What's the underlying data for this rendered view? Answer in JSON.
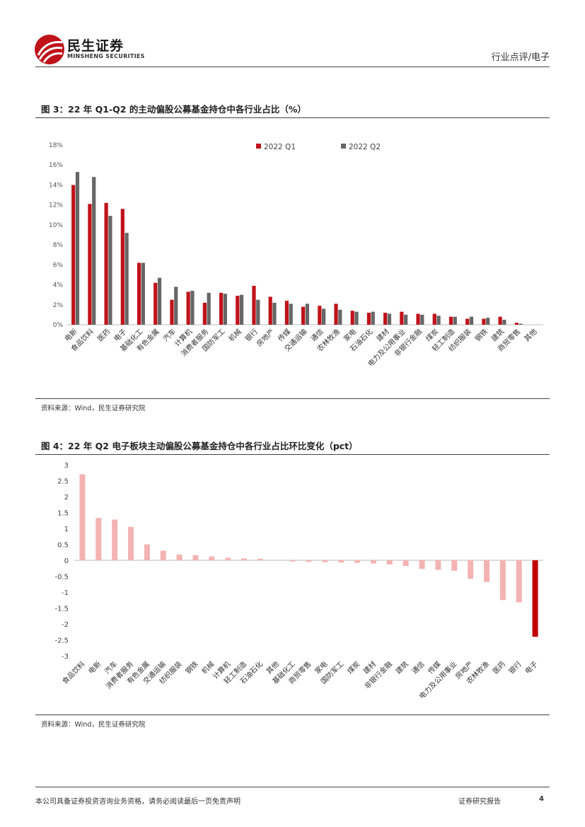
{
  "header": {
    "logo_cn": "民生证券",
    "logo_en": "MINSHENG SECURITIES",
    "section": "行业点评/电子"
  },
  "colors": {
    "brand_red": "#c0121a",
    "q2_gray": "#666666",
    "pos_pink": "#f4b3b3",
    "neg_red": "#c00000"
  },
  "figure3": {
    "title": "图 3：22 年 Q1-Q2 的主动偏股公募基金持仓中各行业占比（%）",
    "source": "资料来源：Wind，民生证券研究院",
    "chart_data": {
      "type": "bar",
      "categories": [
        "电新",
        "食品饮料",
        "医药",
        "电子",
        "基础化工",
        "有色金属",
        "汽车",
        "计算机",
        "消费者服务",
        "国防军工",
        "机械",
        "银行",
        "房地产",
        "传媒",
        "交通运输",
        "通信",
        "农林牧渔",
        "家电",
        "石油石化",
        "建材",
        "电力及公用事业",
        "非银行金融",
        "煤炭",
        "轻工制造",
        "纺织服装",
        "钢铁",
        "建筑",
        "商贸零售",
        "其他"
      ],
      "series": [
        {
          "name": "2022 Q1",
          "values": [
            14.0,
            12.1,
            12.2,
            11.6,
            6.2,
            4.2,
            2.5,
            3.3,
            2.2,
            3.2,
            2.9,
            3.9,
            2.8,
            2.4,
            1.8,
            1.9,
            2.1,
            1.4,
            1.2,
            1.2,
            1.3,
            1.1,
            1.1,
            0.8,
            0.6,
            0.6,
            0.8,
            0.2,
            0.0
          ]
        },
        {
          "name": "2022 Q2",
          "values": [
            15.3,
            14.8,
            10.9,
            9.2,
            6.2,
            4.7,
            3.8,
            3.4,
            3.2,
            3.1,
            3.0,
            2.5,
            2.2,
            2.1,
            2.1,
            1.6,
            1.5,
            1.3,
            1.3,
            1.1,
            1.0,
            1.0,
            0.9,
            0.8,
            0.8,
            0.7,
            0.5,
            0.1,
            0.0
          ]
        }
      ],
      "ylim": [
        0,
        18
      ],
      "yticks": [
        "0%",
        "2%",
        "4%",
        "6%",
        "8%",
        "10%",
        "12%",
        "14%",
        "16%",
        "18%"
      ],
      "xlabel": "",
      "ylabel": "",
      "legend": "top-center"
    }
  },
  "figure4": {
    "title": "图 4：22 年 Q2 电子板块主动偏股公募基金持仓中各行业占比环比变化（pct）",
    "source": "资料来源：Wind，民生证券研究院",
    "chart_data": {
      "type": "bar",
      "categories": [
        "食品饮料",
        "电新",
        "汽车",
        "消费者服务",
        "有色金属",
        "交通运输",
        "纺织服装",
        "钢铁",
        "机械",
        "计算机",
        "轻工制造",
        "石油石化",
        "其他",
        "基础化工",
        "商贸零售",
        "家电",
        "国防军工",
        "煤炭",
        "建材",
        "非银行金融",
        "建筑",
        "通信",
        "传媒",
        "电力及公用事业",
        "房地产",
        "农林牧渔",
        "医药",
        "银行",
        "电子"
      ],
      "values": [
        2.7,
        1.33,
        1.28,
        1.05,
        0.5,
        0.3,
        0.18,
        0.16,
        0.12,
        0.08,
        0.06,
        0.05,
        0.0,
        -0.04,
        -0.05,
        -0.06,
        -0.07,
        -0.08,
        -0.1,
        -0.13,
        -0.18,
        -0.27,
        -0.3,
        -0.33,
        -0.58,
        -0.68,
        -1.25,
        -1.32,
        -2.4
      ],
      "ylim": [
        -3,
        3
      ],
      "yticks": [
        "3",
        "2.5",
        "2",
        "1.5",
        "1",
        "0.5",
        "0",
        "-0.5",
        "-1",
        "-1.5",
        "-2",
        "-2.5",
        "-3"
      ],
      "highlight": "电子",
      "xlabel": "",
      "ylabel": ""
    }
  },
  "footer": {
    "disclaimer": "本公司具备证券投资咨询业务资格，请务必阅读最后一页免责声明",
    "report_type": "证券研究报告",
    "page": "4"
  }
}
